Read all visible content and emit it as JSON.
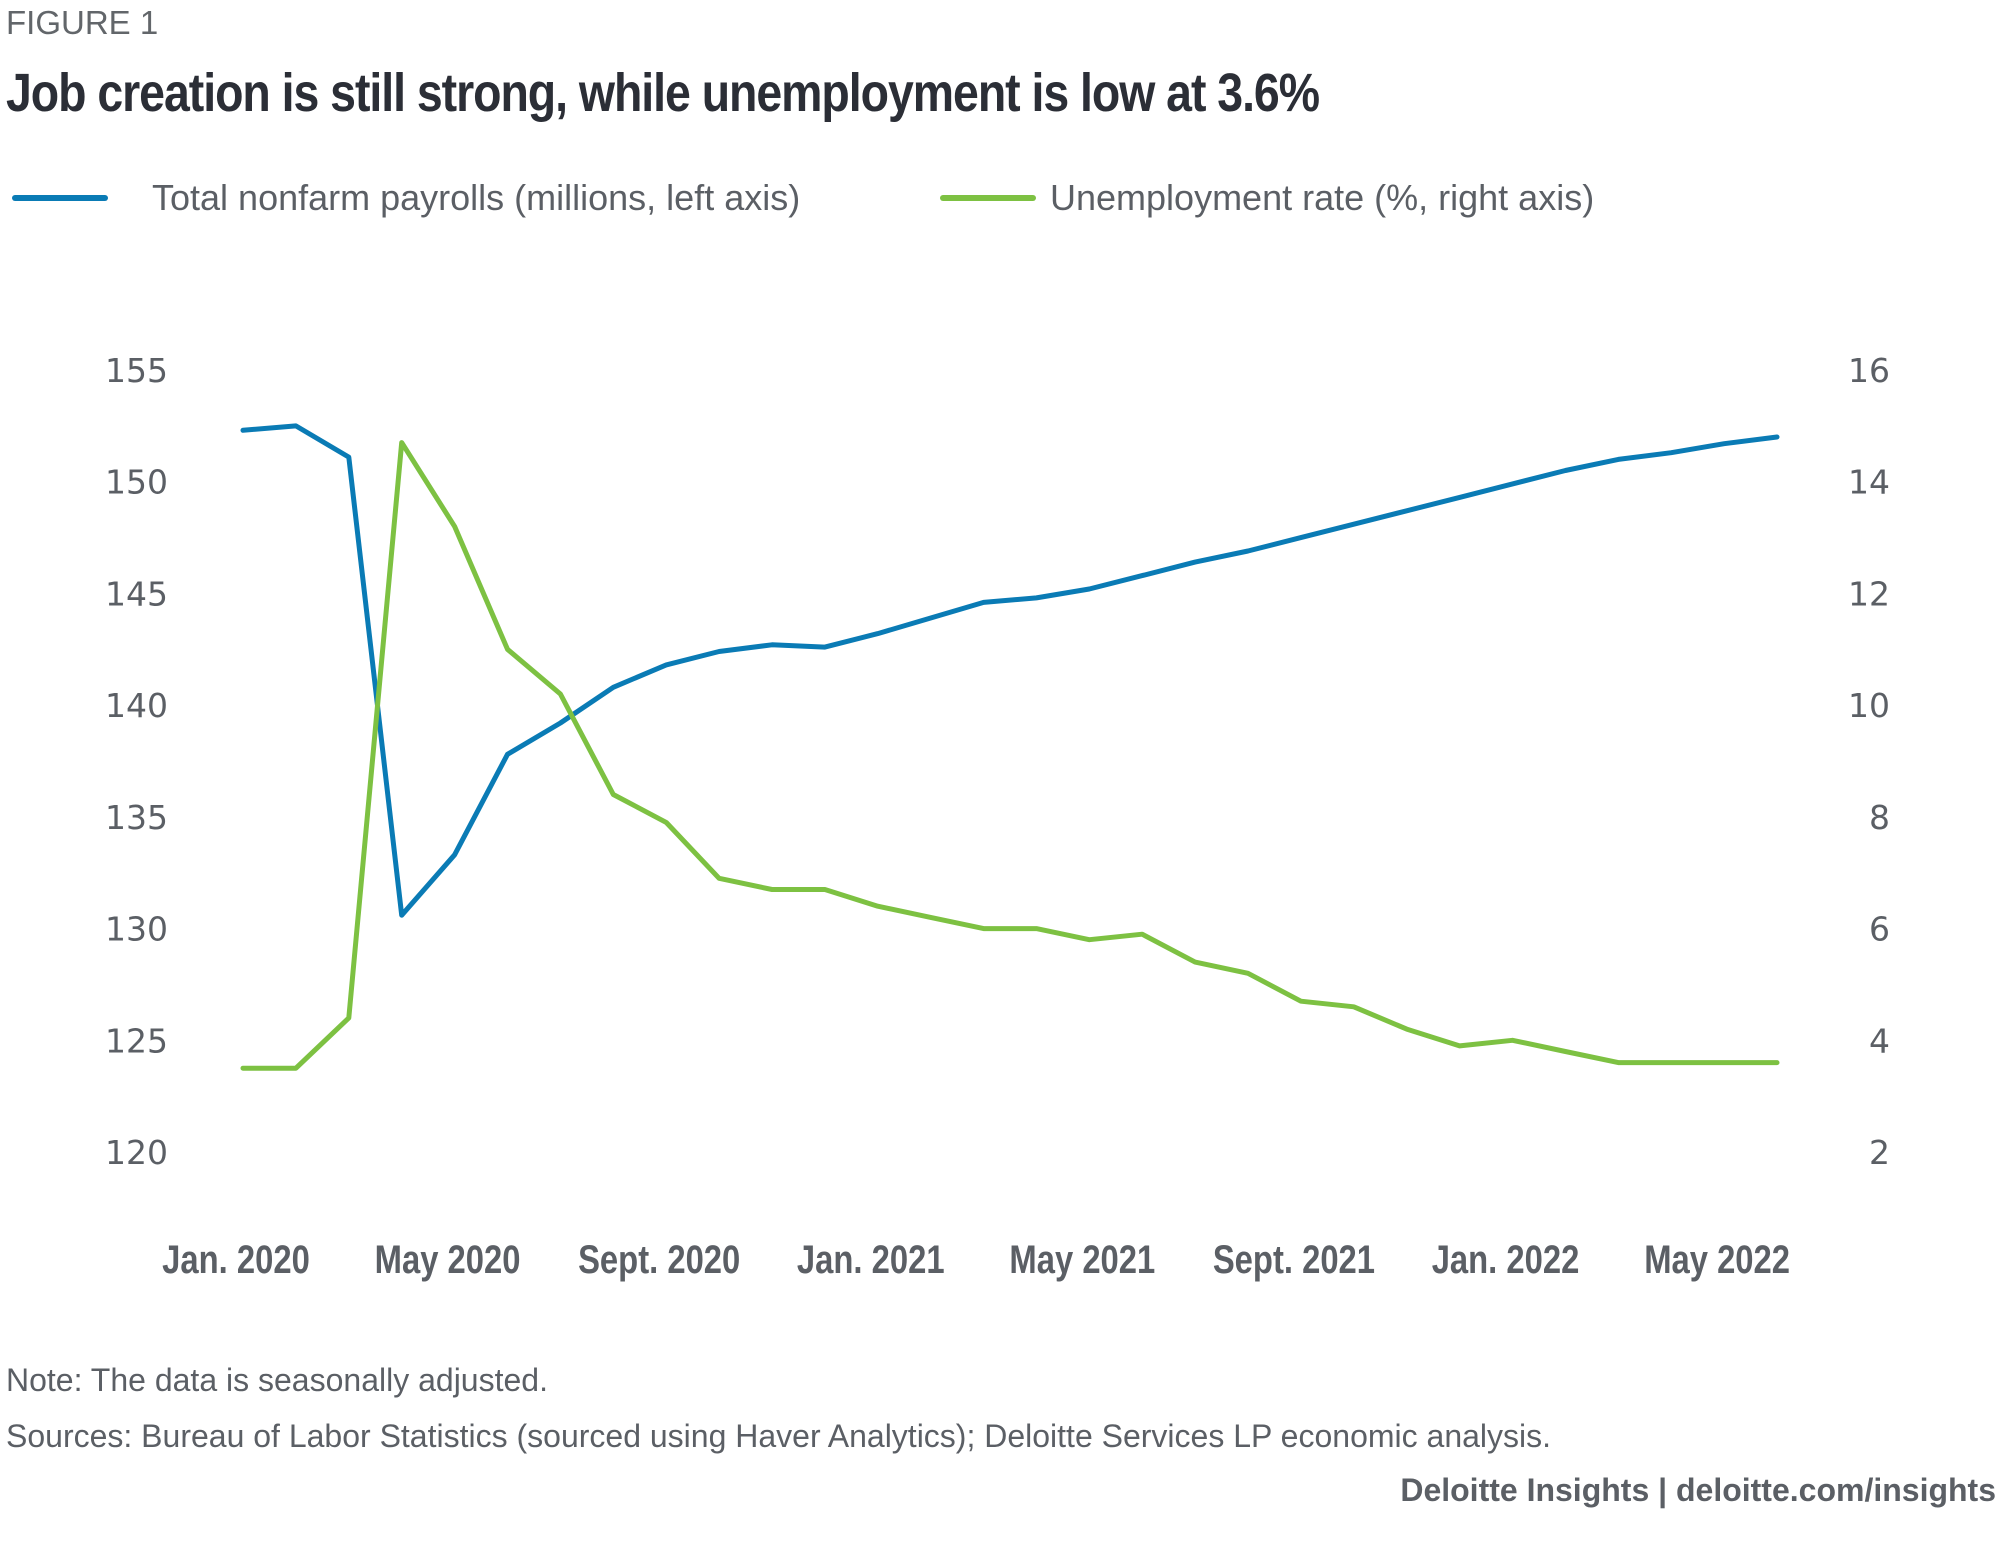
{
  "figure_label": "FIGURE 1",
  "colors": {
    "payrolls": "#0a7bb5",
    "unemployment": "#7dc142",
    "text": "#5b5f65",
    "title": "#2b2e36"
  },
  "chart_data": {
    "type": "line",
    "title": "Job creation is still strong, while unemployment is low at 3.6%",
    "x": [
      "Jan. 2020",
      "Feb. 2020",
      "Mar. 2020",
      "Apr. 2020",
      "May 2020",
      "Jun. 2020",
      "Jul. 2020",
      "Aug. 2020",
      "Sept. 2020",
      "Oct. 2020",
      "Nov. 2020",
      "Dec. 2020",
      "Jan. 2021",
      "Feb. 2021",
      "Mar. 2021",
      "Apr. 2021",
      "May 2021",
      "Jun. 2021",
      "Jul. 2021",
      "Aug. 2021",
      "Sept. 2021",
      "Oct. 2021",
      "Nov. 2021",
      "Dec. 2021",
      "Jan. 2022",
      "Feb. 2022",
      "Mar. 2022",
      "Apr. 2022",
      "May 2022",
      "Jun. 2022"
    ],
    "x_tick_labels": [
      "Jan. 2020",
      "May 2020",
      "Sept. 2020",
      "Jan. 2021",
      "May 2021",
      "Sept. 2021",
      "Jan. 2022",
      "May 2022"
    ],
    "x_tick_indices": [
      0,
      4,
      8,
      12,
      16,
      20,
      24,
      28
    ],
    "series": [
      {
        "name": "Total nonfarm payrolls (millions, left axis)",
        "axis": "left",
        "color": "#0a7bb5",
        "values": [
          152.3,
          152.5,
          151.1,
          130.6,
          133.3,
          137.8,
          139.2,
          140.8,
          141.8,
          142.4,
          142.7,
          142.6,
          143.2,
          143.9,
          144.6,
          144.8,
          145.2,
          145.8,
          146.4,
          146.9,
          147.5,
          148.1,
          148.7,
          149.3,
          149.9,
          150.5,
          151.0,
          151.3,
          151.7,
          152.0
        ]
      },
      {
        "name": "Unemployment rate (%, right axis)",
        "axis": "right",
        "color": "#7dc142",
        "values": [
          3.5,
          3.5,
          4.4,
          14.7,
          13.2,
          11.0,
          10.2,
          8.4,
          7.9,
          6.9,
          6.7,
          6.7,
          6.4,
          6.2,
          6.0,
          6.0,
          5.8,
          5.9,
          5.4,
          5.2,
          4.7,
          4.6,
          4.2,
          3.9,
          4.0,
          3.8,
          3.6,
          3.6,
          3.6,
          3.6
        ]
      }
    ],
    "left_axis": {
      "ylim": [
        120,
        155
      ],
      "ticks": [
        "155",
        "150",
        "145",
        "140",
        "135",
        "130",
        "125",
        "120"
      ],
      "tick_values": [
        155,
        150,
        145,
        140,
        135,
        130,
        125,
        120
      ]
    },
    "right_axis": {
      "ylim": [
        2,
        16
      ],
      "ticks": [
        "16",
        "14",
        "12",
        "10",
        "8",
        "6",
        "4",
        "2"
      ],
      "tick_values": [
        16,
        14,
        12,
        10,
        8,
        6,
        4,
        2
      ]
    },
    "xlabel": "",
    "ylabel": "",
    "grid": false,
    "legend_position": "top-left"
  },
  "legend": {
    "payrolls": "Total nonfarm payrolls (millions, left axis)",
    "unemployment": "Unemployment rate (%, right axis)"
  },
  "note": "Note: The data is seasonally adjusted.",
  "sources": "Sources: Bureau of Labor Statistics (sourced using Haver Analytics); Deloitte Services LP economic analysis.",
  "footer": "Deloitte Insights | deloitte.com/insights"
}
